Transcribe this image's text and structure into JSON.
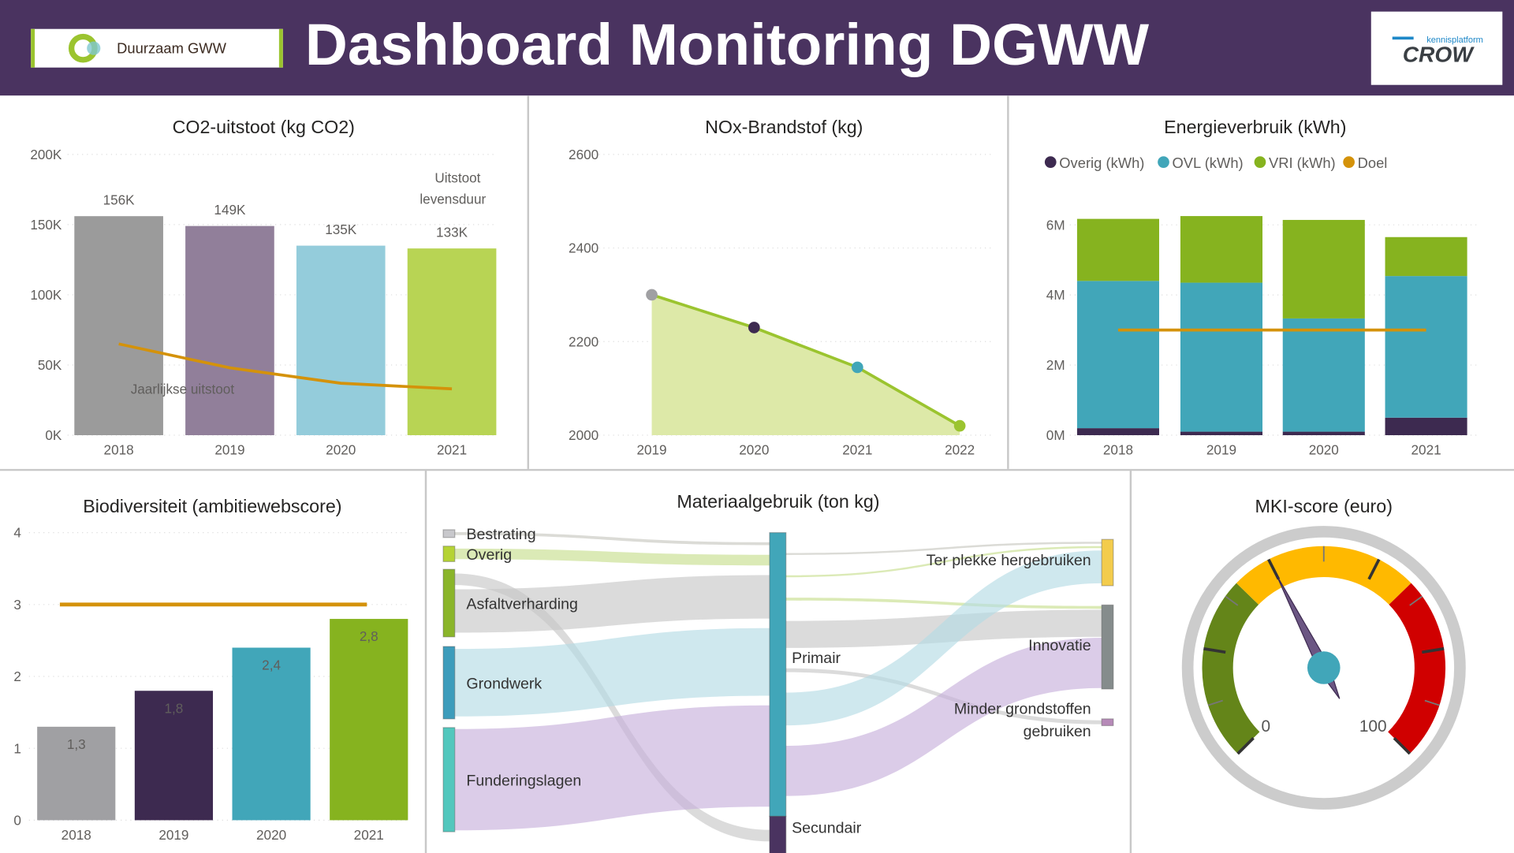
{
  "header": {
    "title": "Dashboard Monitoring DGWW",
    "logo_left": "Duurzaam GWW",
    "logo_right_top": "kennisplatform",
    "logo_right_main": "CROW",
    "background": "#4a3360"
  },
  "chart_data": [
    {
      "id": "co2",
      "type": "bar",
      "title": "CO2-uitstoot (kg CO2)",
      "categories": [
        "2018",
        "2019",
        "2020",
        "2021"
      ],
      "yticks": [
        "0K",
        "50K",
        "100K",
        "150K",
        "200K"
      ],
      "ylim": [
        0,
        200000
      ],
      "grid": true,
      "series": [
        {
          "name": "Uitstoot levensduur",
          "type": "bar",
          "values": [
            156000,
            149000,
            135000,
            133000
          ],
          "labels": [
            "156K",
            "149K",
            "135K",
            "133K"
          ],
          "colors": [
            "#9b9b9b",
            "#917f9a",
            "#94ccdb",
            "#b8d454"
          ]
        },
        {
          "name": "Jaarlijkse uitstoot",
          "type": "line",
          "values": [
            65000,
            48000,
            37000,
            33000
          ],
          "color": "#d4920a"
        }
      ],
      "annotations": [
        "Uitstoot",
        "levensduur",
        "Jaarlijkse uitstoot"
      ]
    },
    {
      "id": "nox",
      "type": "area",
      "title": "NOx-Brandstof (kg)",
      "x": [
        "2019",
        "2020",
        "2021",
        "2022"
      ],
      "values": [
        2300,
        2230,
        2145,
        2020
      ],
      "point_colors": [
        "#a0a0a3",
        "#3d2a50",
        "#41a6b9",
        "#9bc42f"
      ],
      "line_color": "#9bc42f",
      "fill_color": "#dde9a8",
      "yticks": [
        "2000",
        "2200",
        "2400",
        "2600"
      ],
      "ylim": [
        2000,
        2600
      ],
      "grid": true
    },
    {
      "id": "energie",
      "type": "bar",
      "stacked": true,
      "title": "Energieverbruik (kWh)",
      "categories": [
        "2018",
        "2019",
        "2020",
        "2021"
      ],
      "yticks": [
        "0M",
        "2M",
        "4M",
        "6M"
      ],
      "ylim": [
        0,
        6000000
      ],
      "legend": "top",
      "series": [
        {
          "name": "Overig (kWh)",
          "values": [
            200000,
            100000,
            100000,
            500000
          ],
          "color": "#3d2a50"
        },
        {
          "name": "OVL (kWh)",
          "values": [
            4200000,
            4250000,
            3230000,
            4040000
          ],
          "color": "#41a6b9"
        },
        {
          "name": "VRI (kWh)",
          "values": [
            1770000,
            1900000,
            2810000,
            1110000
          ],
          "color": "#86b31f"
        },
        {
          "name": "Doel",
          "type": "line",
          "values": [
            3000000,
            3000000,
            3000000,
            3000000
          ],
          "color": "#d4920a"
        }
      ]
    },
    {
      "id": "biodiversiteit",
      "type": "bar",
      "title": "Biodiversiteit (ambitiewebscore)",
      "categories": [
        "2018",
        "2019",
        "2020",
        "2021"
      ],
      "values": [
        1.3,
        1.8,
        2.4,
        2.8
      ],
      "labels": [
        "1,3",
        "1,8",
        "2,4",
        "2,8"
      ],
      "colors": [
        "#a0a0a3",
        "#3d2a50",
        "#41a6b9",
        "#86b31f"
      ],
      "target": 3,
      "target_color": "#d4920a",
      "yticks": [
        "0",
        "1",
        "2",
        "3",
        "4"
      ],
      "ylim": [
        0,
        4
      ],
      "grid": true
    },
    {
      "id": "materiaal",
      "type": "sankey",
      "title": "Materiaalgebruik (ton kg)",
      "nodes": [
        {
          "id": "Bestrating",
          "label": "Bestrating",
          "color": "#c8c8cc"
        },
        {
          "id": "Overig",
          "label": "Overig",
          "color": "#b5d334"
        },
        {
          "id": "Asfaltverharding",
          "label": "Asfaltverharding",
          "color": "#8ab52a"
        },
        {
          "id": "Grondwerk",
          "label": "Grondwerk",
          "color": "#3d9cbb"
        },
        {
          "id": "Funderingslagen",
          "label": "Funderingslagen",
          "color": "#52c7bd"
        },
        {
          "id": "Primair",
          "label": "Primair",
          "color": "#41a6b9"
        },
        {
          "id": "Secundair",
          "label": "Secundair",
          "color": "#4a3360"
        },
        {
          "id": "Ter plekke hergebruiken",
          "label": "Ter plekke hergebruiken",
          "color": "#f3cc4c"
        },
        {
          "id": "Innovatie",
          "label": "Innovatie",
          "color": "#858c8c"
        },
        {
          "id": "Minder grondstoffen gebruiken",
          "label": "Minder grondstoffen",
          "label2": "gebruiken",
          "color": "#b68ab8"
        }
      ],
      "links": [
        {
          "source": "Bestrating",
          "target": "Primair",
          "value": 3,
          "color": "#c8c8c0"
        },
        {
          "source": "Overig",
          "target": "Primair",
          "value": 11,
          "color": "#c7de8f"
        },
        {
          "source": "Asfaltverharding",
          "target": "Secundair",
          "value": 12,
          "color": "#c8c8c8"
        },
        {
          "source": "Asfaltverharding",
          "target": "Primair",
          "value": 45,
          "color": "#c8c8c8"
        },
        {
          "source": "Grondwerk",
          "target": "Primair",
          "value": 70,
          "color": "#b5dce5"
        },
        {
          "source": "Funderingslagen",
          "target": "Primair",
          "value": 105,
          "color": "#c8b0dc"
        },
        {
          "source": "Primair",
          "target": "Ter plekke hergebruiken",
          "value": 2,
          "color": "#c8c8c0"
        },
        {
          "source": "Primair",
          "target": "Ter plekke hergebruiken",
          "value": 2,
          "color": "#c7de8f"
        },
        {
          "source": "Primair",
          "target": "Innovatie",
          "value": 3,
          "color": "#c7de8f"
        },
        {
          "source": "Primair",
          "target": "Innovatie",
          "value": 28,
          "color": "#c8c8c8"
        },
        {
          "source": "Primair",
          "target": "Minder grondstoffen gebruiken",
          "value": 4,
          "color": "#c8c8c8"
        },
        {
          "source": "Primair",
          "target": "Ter plekke hergebruiken",
          "value": 34,
          "color": "#b5dce5"
        },
        {
          "source": "Primair",
          "target": "Innovatie",
          "value": 52,
          "color": "#c8b0dc"
        }
      ]
    },
    {
      "id": "mki",
      "type": "gauge",
      "title": "MKI-score (euro)",
      "min": 0,
      "max": 100,
      "min_label": "0",
      "max_label": "100",
      "value": 40,
      "bands": [
        {
          "from": 0,
          "to": 33,
          "color": "#648519"
        },
        {
          "from": 33,
          "to": 67,
          "color": "#ffb900"
        },
        {
          "from": 67,
          "to": 100,
          "color": "#d00000"
        }
      ],
      "needle_color": "#6b5683",
      "hub_color": "#41a6b9"
    }
  ]
}
